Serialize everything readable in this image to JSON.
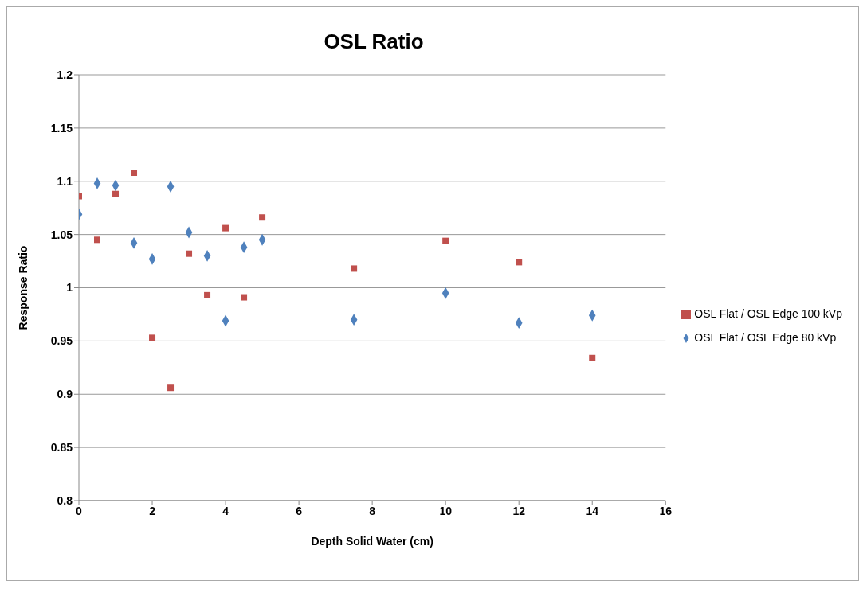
{
  "chart_data": {
    "type": "scatter",
    "title": "OSL Ratio",
    "xlabel": "Depth Solid Water (cm)",
    "ylabel": "Response Ratio",
    "x": [
      0,
      0.5,
      1,
      1.5,
      2,
      2.5,
      3,
      3.5,
      4,
      4.5,
      5,
      7.5,
      10,
      12,
      14
    ],
    "series": [
      {
        "name": "OSL Flat / OSL Edge 80 kVp",
        "color": "#4f81bd",
        "marker": "diamond",
        "values": [
          1.069,
          1.098,
          1.096,
          1.042,
          1.027,
          1.095,
          1.052,
          1.03,
          0.969,
          1.038,
          1.045,
          0.97,
          0.995,
          0.967,
          0.974
        ]
      },
      {
        "name": "OSL Flat / OSL Edge 100 kVp",
        "color": "#c0504d",
        "marker": "square",
        "values": [
          1.086,
          1.045,
          1.088,
          1.108,
          0.953,
          0.906,
          1.032,
          0.993,
          1.056,
          0.991,
          1.066,
          1.018,
          1.044,
          1.024,
          0.934
        ]
      }
    ],
    "xlim": [
      0,
      16
    ],
    "xticks": [
      0,
      2,
      4,
      6,
      8,
      10,
      12,
      14,
      16
    ],
    "ylim": [
      0.8,
      1.2
    ],
    "yticks": [
      0.8,
      0.85,
      0.9,
      0.95,
      1,
      1.05,
      1.1,
      1.15,
      1.2
    ],
    "grid": "y",
    "legend": "right"
  }
}
